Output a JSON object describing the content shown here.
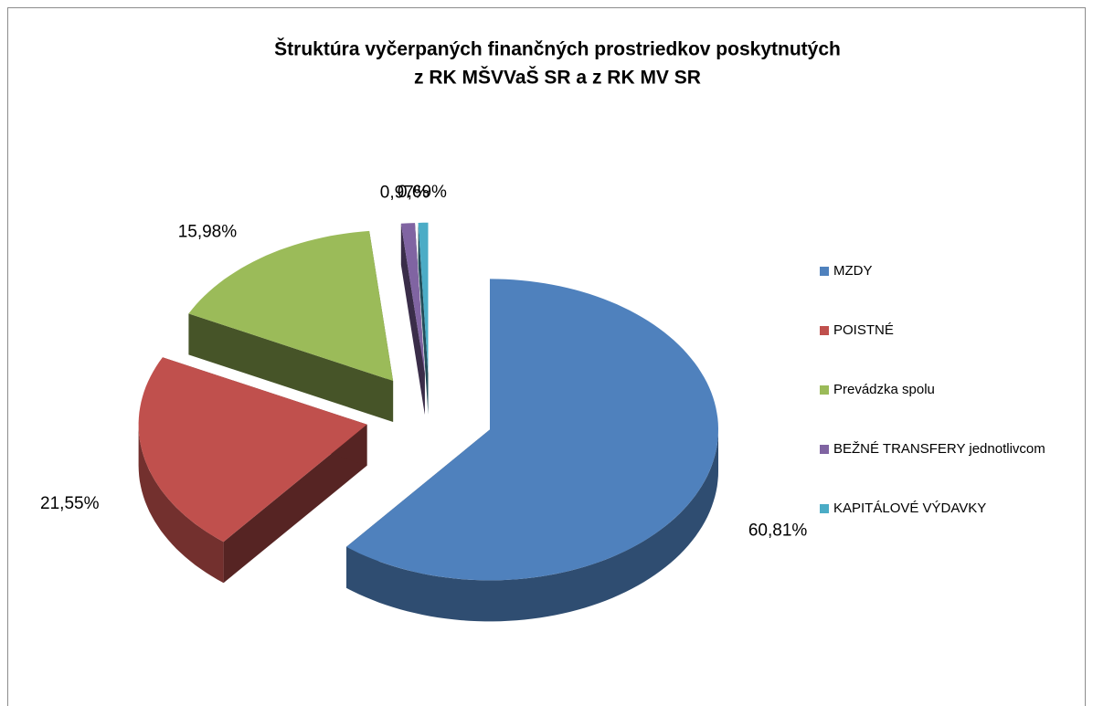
{
  "chart_data": {
    "type": "pie",
    "title": "Štruktúra vyčerpaných finančných prostriedkov poskytnutých",
    "subtitle": "z RK MŠVVaŠ SR a z RK MV SR",
    "categories": [
      "MZDY",
      "POISTNÉ",
      "Prevádzka spolu",
      "BEŽNÉ TRANSFERY jednotlivcom",
      "KAPITÁLOVÉ VÝDAVKY"
    ],
    "values": [
      60.81,
      21.55,
      15.98,
      0.97,
      0.69
    ],
    "value_labels": [
      "60,81%",
      "21,55%",
      "15,98%",
      "0,97%",
      "0,69%"
    ],
    "colors": [
      "#4f81bd",
      "#c0504d",
      "#9bbb59",
      "#8064a2",
      "#4bacc6"
    ],
    "legend": "right"
  }
}
